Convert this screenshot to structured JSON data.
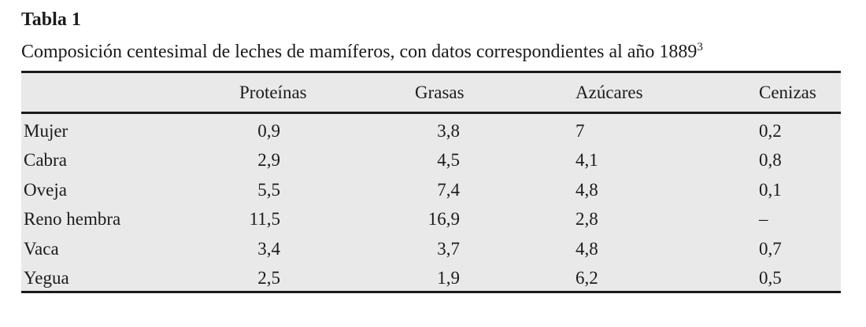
{
  "title": "Tabla 1",
  "caption": {
    "text": "Composición centesimal de leches de mamíferos, con datos correspondientes al año 1889",
    "footnote_marker": "3"
  },
  "table": {
    "columns": [
      "",
      "Proteínas",
      "Grasas",
      "Azúcares",
      "Cenizas"
    ],
    "rows": [
      [
        "Mujer",
        "0,9",
        "3,8",
        "7",
        "0,2"
      ],
      [
        "Cabra",
        "2,9",
        "4,5",
        "4,1",
        "0,8"
      ],
      [
        "Oveja",
        "5,5",
        "7,4",
        "4,8",
        "0,1"
      ],
      [
        "Reno hembra",
        "11,5",
        "16,9",
        "2,8",
        "–"
      ],
      [
        "Vaca",
        "3,4",
        "3,7",
        "4,8",
        "0,7"
      ],
      [
        "Yegua",
        "2,5",
        "1,9",
        "6,2",
        "0,5"
      ]
    ]
  },
  "colors": {
    "table_background": "#e9e9e9",
    "rule": "#1a1a1a",
    "text": "#1b1b1b"
  }
}
